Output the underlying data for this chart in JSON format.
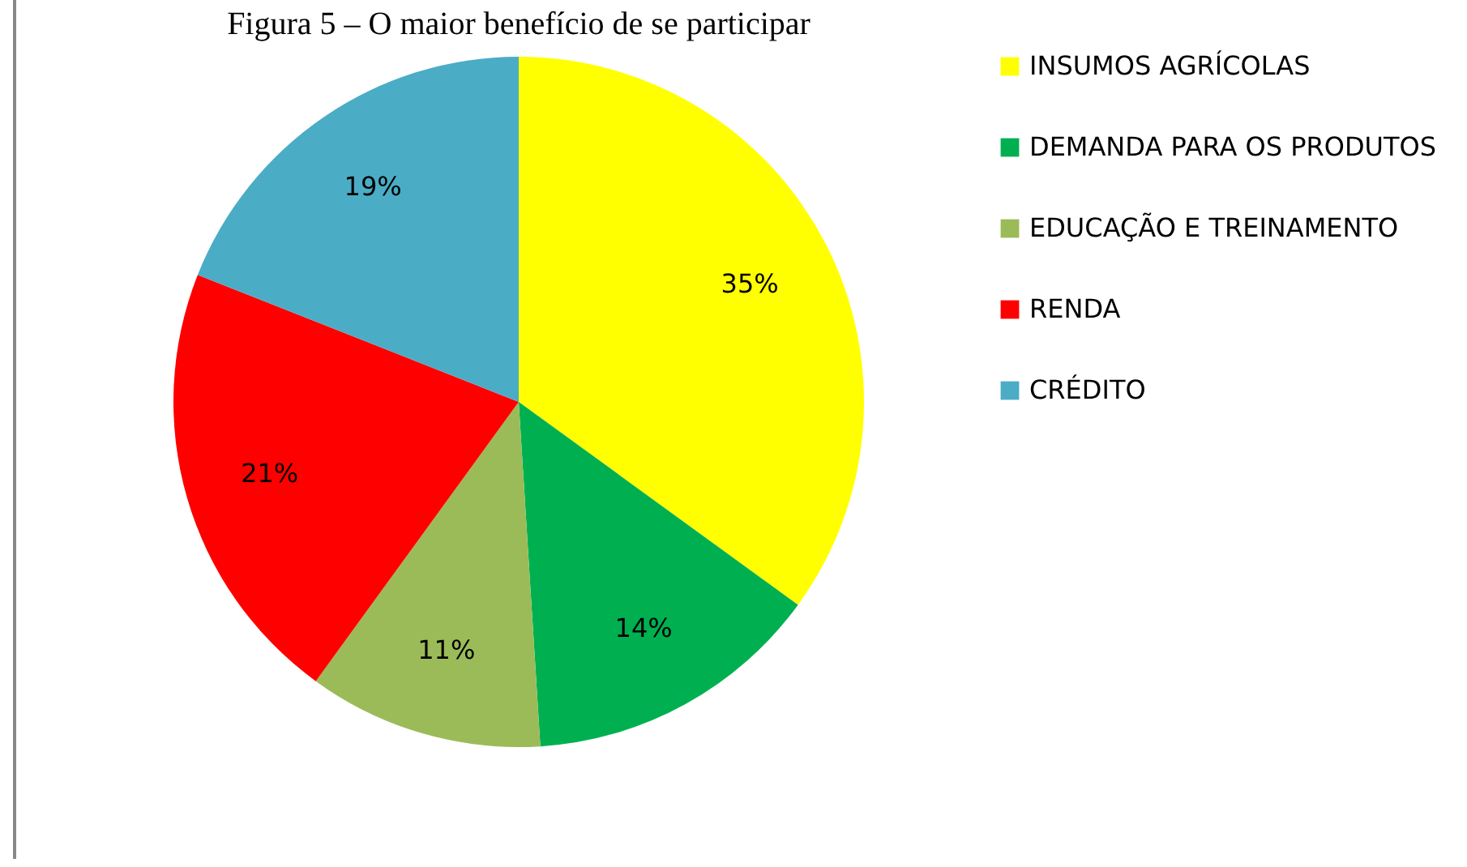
{
  "chart_data": {
    "type": "pie",
    "title": "Figura 5 – O maior benefício de se participar",
    "categories": [
      "INSUMOS AGRÍCOLAS",
      "DEMANDA PARA OS PRODUTOS",
      "EDUCAÇÃO E TREINAMENTO",
      "RENDA",
      "CRÉDITO"
    ],
    "values": [
      35,
      14,
      11,
      21,
      19
    ],
    "colors": [
      "#ffff00",
      "#00b050",
      "#9bbb59",
      "#ff0000",
      "#4bacc6"
    ],
    "value_labels": [
      "35%",
      "14%",
      "11%",
      "21%",
      "19%"
    ],
    "legend": "right"
  }
}
